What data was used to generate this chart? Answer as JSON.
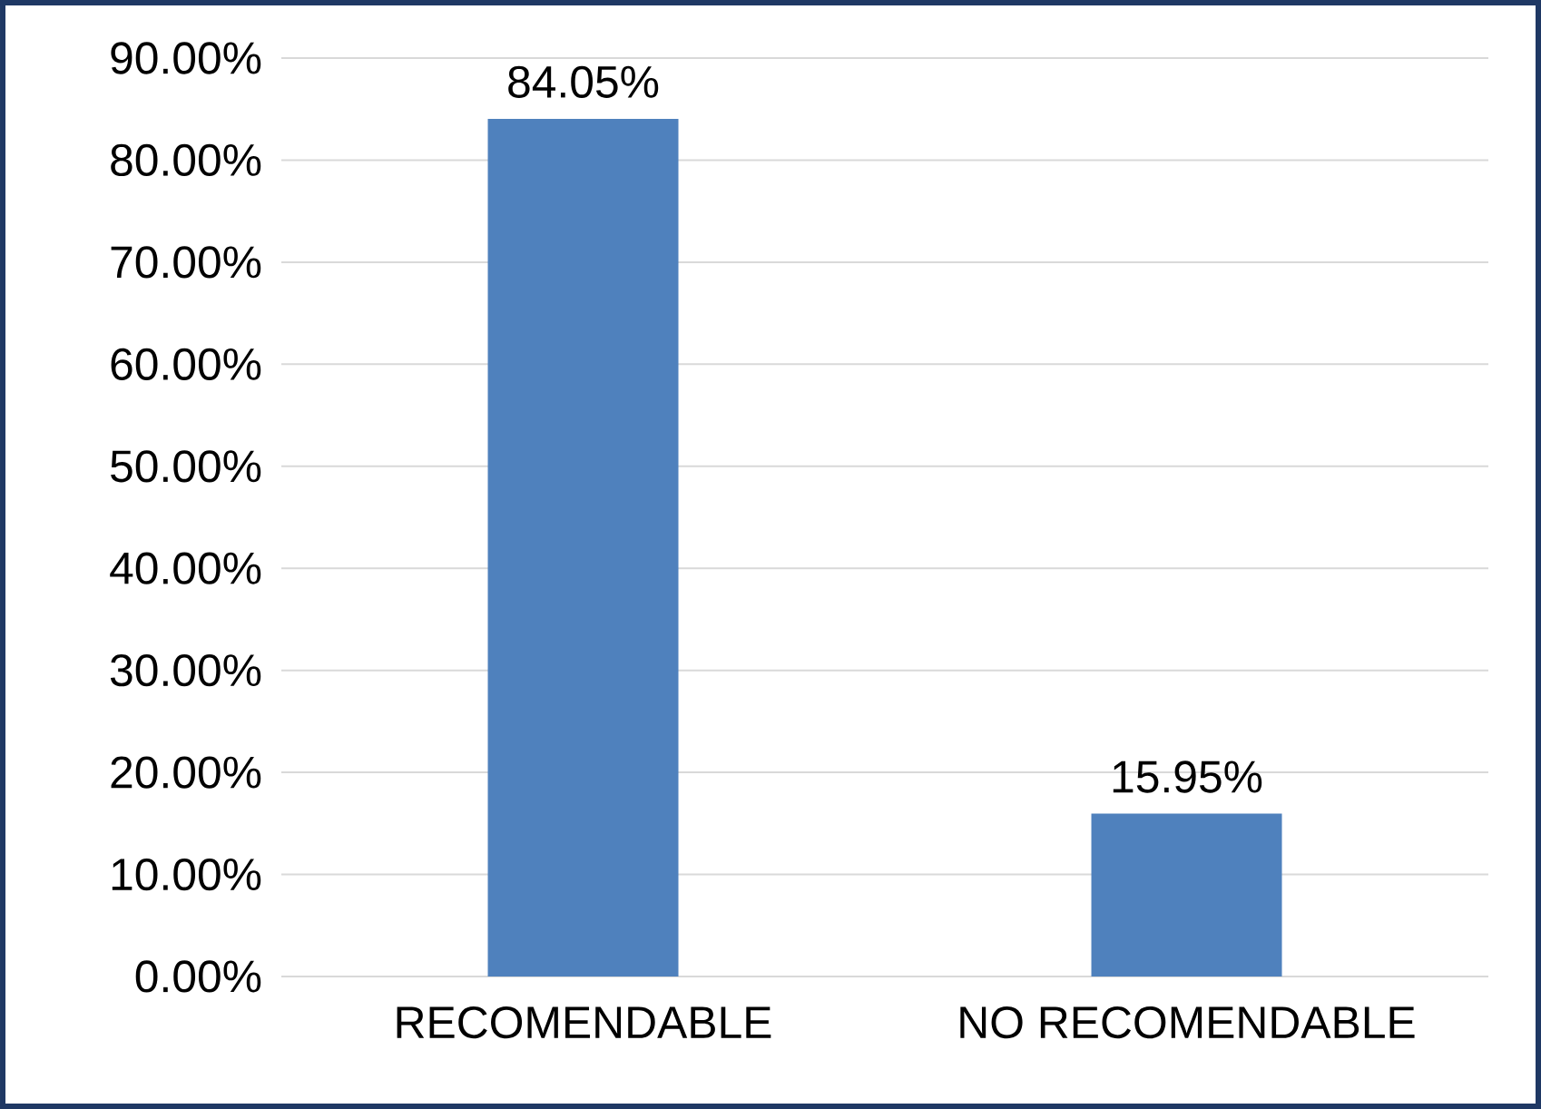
{
  "chart_data": {
    "type": "bar",
    "categories": [
      "RECOMENDABLE",
      "NO RECOMENDABLE"
    ],
    "values": [
      84.05,
      15.95
    ],
    "value_labels": [
      "84.05%",
      "15.95%"
    ],
    "color": "#4f81bd",
    "ylim": [
      0,
      90
    ],
    "yticks": [
      {
        "value": 0,
        "label": "0.00%"
      },
      {
        "value": 10,
        "label": "10.00%"
      },
      {
        "value": 20,
        "label": "20.00%"
      },
      {
        "value": 30,
        "label": "30.00%"
      },
      {
        "value": 40,
        "label": "40.00%"
      },
      {
        "value": 50,
        "label": "50.00%"
      },
      {
        "value": 60,
        "label": "60.00%"
      },
      {
        "value": 70,
        "label": "70.00%"
      },
      {
        "value": 80,
        "label": "80.00%"
      },
      {
        "value": 90,
        "label": "90.00%"
      }
    ],
    "grid": "y"
  }
}
